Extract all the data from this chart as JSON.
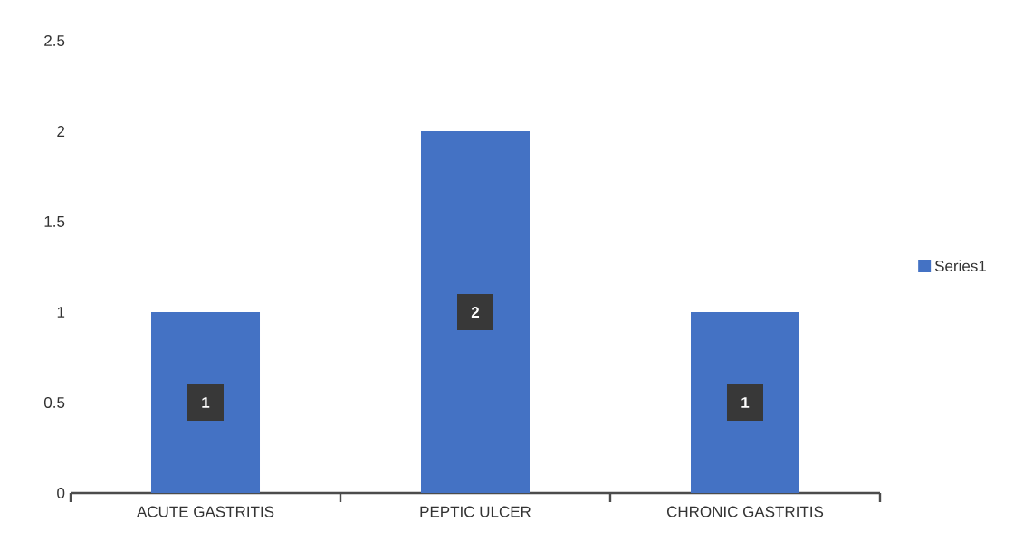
{
  "chart_data": {
    "type": "bar",
    "categories": [
      "ACUTE GASTRITIS",
      "PEPTIC ULCER",
      "CHRONIC GASTRITIS"
    ],
    "series": [
      {
        "name": "Series1",
        "color": "#4472c4",
        "values": [
          1,
          2,
          1
        ]
      }
    ],
    "ylim": [
      0,
      2.5
    ],
    "yticks": [
      0,
      0.5,
      1,
      1.5,
      2,
      2.5
    ],
    "data_labels": true,
    "legend": "right",
    "grid": false
  }
}
